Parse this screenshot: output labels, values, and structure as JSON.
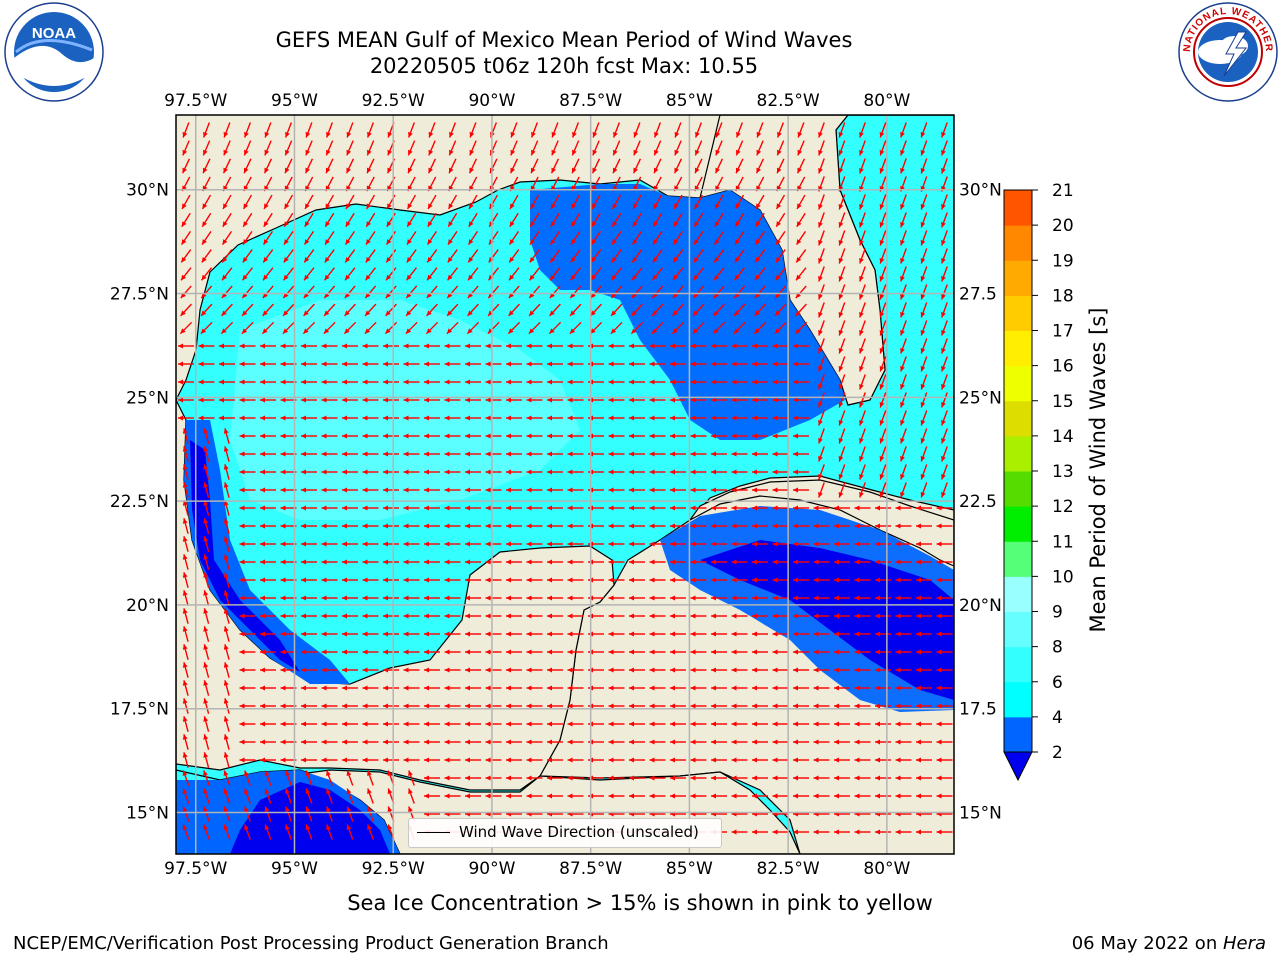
{
  "title": {
    "line1": "GEFS MEAN Gulf of Mexico Mean Period of Wind Waves",
    "line2": "20220505 t06z 120h fcst   Max: 10.55"
  },
  "logos": {
    "left": "NOAA",
    "right": "NATIONAL WEATHER SERVICE"
  },
  "map": {
    "lon_labels": [
      "97.5°W",
      "95°W",
      "92.5°W",
      "90°W",
      "87.5°W",
      "85°W",
      "82.5°W",
      "80°W"
    ],
    "lon_values": [
      -97.5,
      -95,
      -92.5,
      -90,
      -87.5,
      -85,
      -82.5,
      -80
    ],
    "lat_labels_left": [
      "30°N",
      "27.5°N",
      "25°N",
      "22.5°N",
      "20°N",
      "17.5°N",
      "15°N"
    ],
    "lat_labels_right": [
      "30°N",
      "27.5",
      "25°N",
      "22.5",
      "20°N",
      "17.5",
      "15°N"
    ],
    "lat_values": [
      30,
      27.5,
      25,
      22.5,
      20,
      17.5,
      15
    ],
    "extent": {
      "lon_min": -98,
      "lon_max": -78.3,
      "lat_min": 14.0,
      "lat_max": 31.8
    },
    "land_color": "#efecd9",
    "arrow_color": "#ff0000",
    "grid_color": "#b4b4b4"
  },
  "legend": {
    "label": "Wind Wave Direction (unscaled)"
  },
  "colorbar": {
    "label": "Mean Period of Wind Waves [s]",
    "ticks": [
      "2",
      "4",
      "6",
      "8",
      "9",
      "10",
      "11",
      "12",
      "13",
      "14",
      "15",
      "16",
      "17",
      "18",
      "19",
      "20",
      "21"
    ],
    "colors": [
      "#0066ff",
      "#00ffff",
      "#33ffff",
      "#66ffff",
      "#99ffff",
      "#55ff77",
      "#00ee00",
      "#55dd00",
      "#aaee00",
      "#dddd00",
      "#eeff00",
      "#ffee00",
      "#ffcc00",
      "#ffaa00",
      "#ff8800",
      "#ff5500",
      "#ff2200",
      "#ff0000"
    ],
    "under_color": "#0000ee"
  },
  "footer": {
    "ice_note": "Sea Ice Concentration > 15% is shown in pink to yellow",
    "credit": "NCEP/EMC/Verification Post Processing Product Generation Branch",
    "date": "06 May 2022 on ",
    "host": "Hera"
  }
}
